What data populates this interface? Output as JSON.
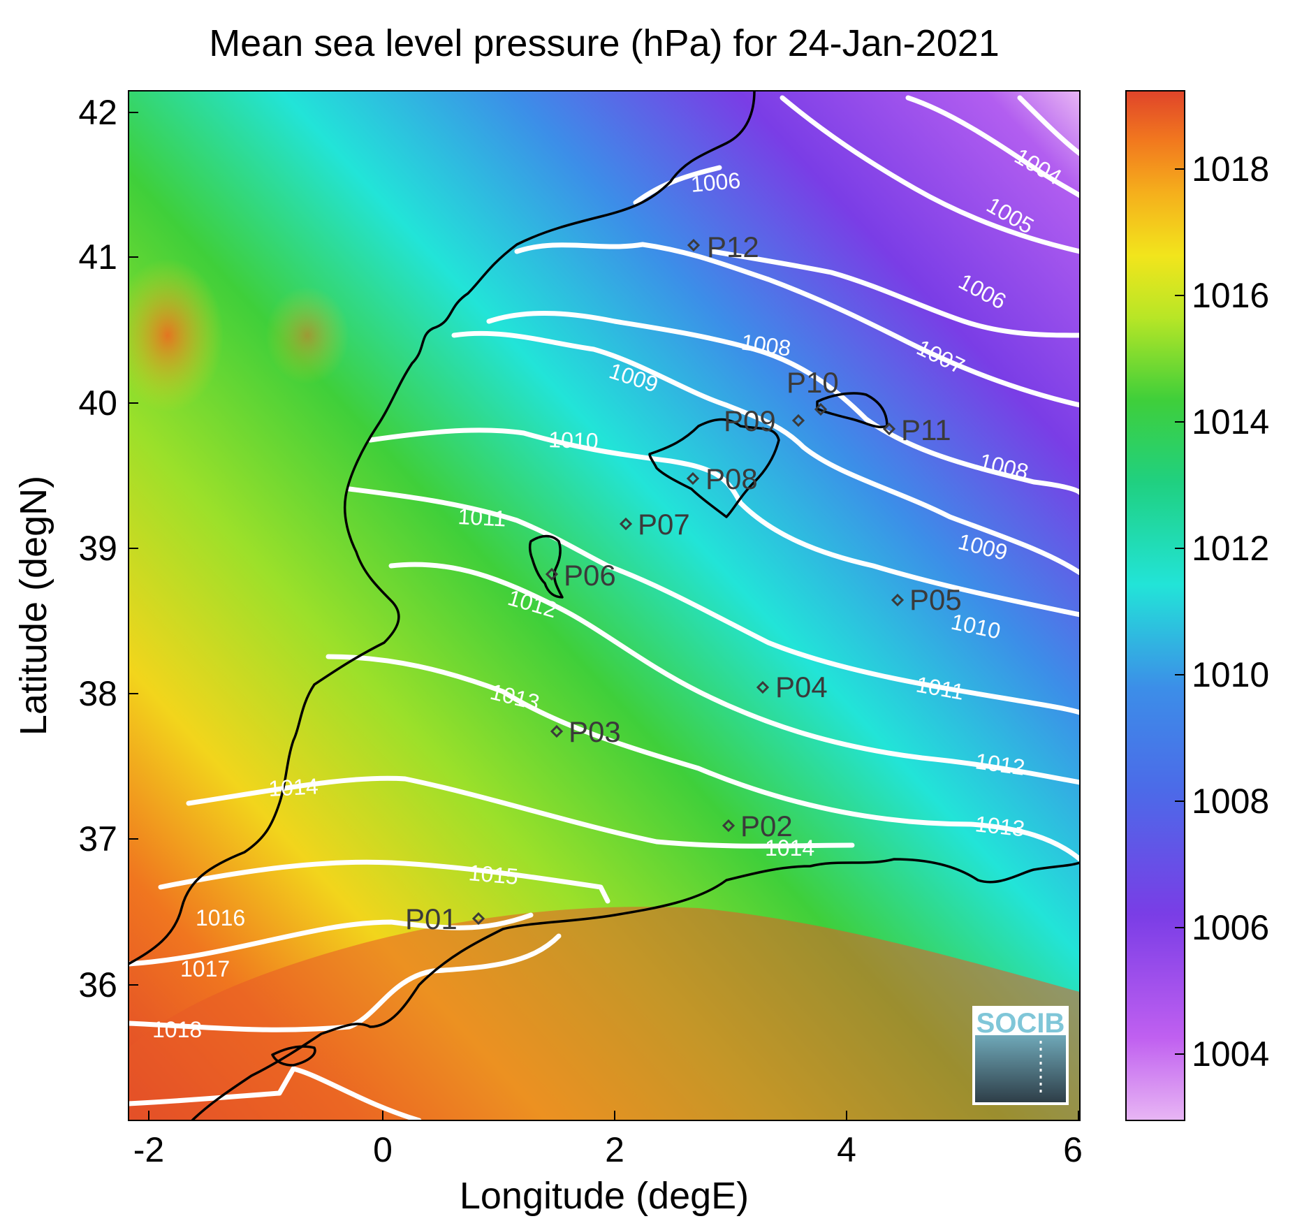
{
  "title": "Mean sea level pressure (hPa) for 24-Jan-2021",
  "xlabel": "Longitude (degE)",
  "ylabel": "Latitude (degN)",
  "x_ticks": [
    "-2",
    "0",
    "2",
    "4",
    "6"
  ],
  "y_ticks": [
    "42",
    "41",
    "40",
    "39",
    "38",
    "37",
    "36"
  ],
  "colorbar_ticks": [
    "1018",
    "1016",
    "1014",
    "1012",
    "1010",
    "1008",
    "1006",
    "1004"
  ],
  "logo_text": "SOCIB",
  "colors": {
    "high": "#e0442a",
    "orange": "#f58a1f",
    "yellow": "#f2e51c",
    "green": "#3fcf3a",
    "cyan": "#22e4d8",
    "blue": "#3c8ee8",
    "purple": "#7a3de6",
    "low": "#e8b6f4",
    "isobar": "#ffffff",
    "coast": "#000000"
  },
  "isobar_labels": [
    "1004",
    "1005",
    "1006",
    "1006",
    "1007",
    "1008",
    "1008",
    "1009",
    "1009",
    "1010",
    "1010",
    "1011",
    "1011",
    "1012",
    "1012",
    "1013",
    "1013",
    "1014",
    "1014",
    "1015",
    "1016",
    "1017",
    "1018"
  ],
  "stations": [
    "P01",
    "P02",
    "P03",
    "P04",
    "P05",
    "P06",
    "P07",
    "P08",
    "P09",
    "P10",
    "P11",
    "P12"
  ],
  "chart_data": {
    "type": "heatmap",
    "title": "Mean sea level pressure (hPa) for 24-Jan-2021",
    "xlabel": "Longitude (degE)",
    "ylabel": "Latitude (degN)",
    "xlim": [
      -2.2,
      6.0
    ],
    "ylim": [
      35.3,
      42.2
    ],
    "colorbar_range": [
      1003,
      1019
    ],
    "units": "hPa",
    "stations": [
      {
        "name": "P01",
        "lon": 0.8,
        "lat": 36.5
      },
      {
        "name": "P02",
        "lon": 3.0,
        "lat": 37.2
      },
      {
        "name": "P03",
        "lon": 1.5,
        "lat": 37.8
      },
      {
        "name": "P04",
        "lon": 3.3,
        "lat": 38.1
      },
      {
        "name": "P05",
        "lon": 4.5,
        "lat": 38.7
      },
      {
        "name": "P06",
        "lon": 1.5,
        "lat": 38.9
      },
      {
        "name": "P07",
        "lon": 2.1,
        "lat": 39.2
      },
      {
        "name": "P08",
        "lon": 2.7,
        "lat": 39.5
      },
      {
        "name": "P09",
        "lon": 3.6,
        "lat": 39.9
      },
      {
        "name": "P10",
        "lon": 3.8,
        "lat": 40.0
      },
      {
        "name": "P11",
        "lon": 4.4,
        "lat": 39.9
      },
      {
        "name": "P12",
        "lon": 2.7,
        "lat": 41.1
      }
    ],
    "isobar_levels": [
      1004,
      1005,
      1006,
      1007,
      1008,
      1009,
      1010,
      1011,
      1012,
      1013,
      1014,
      1015,
      1016,
      1017,
      1018
    ]
  }
}
